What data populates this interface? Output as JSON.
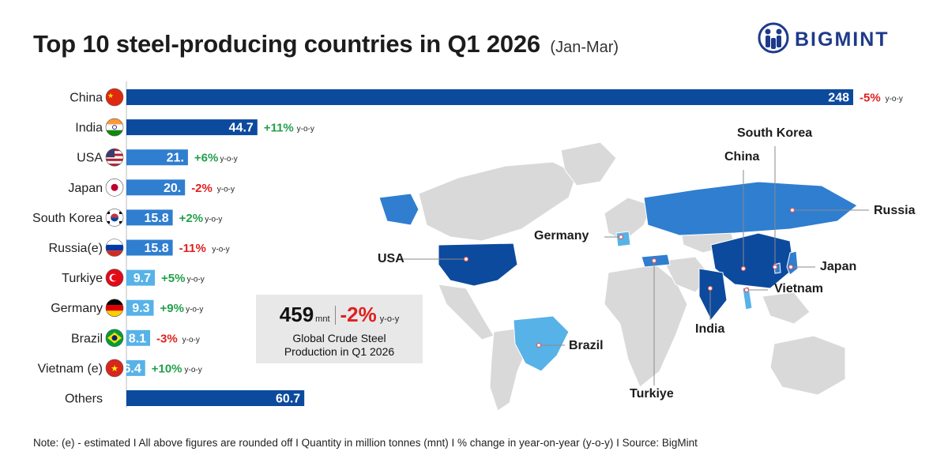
{
  "header": {
    "title": "Top 10 steel-producing countries in Q1 2026",
    "subtitle": "(Jan-Mar)"
  },
  "brand": {
    "name": "BIGMINT",
    "icon": "bigmint-logo-icon",
    "color": "#1e3a8a"
  },
  "colors": {
    "bar_dark": "#0c4a9e",
    "bar_mid": "#2f7ed0",
    "bar_light": "#57b2e8",
    "positive": "#22a04b",
    "negative": "#e02020",
    "land": "#d9d9d9"
  },
  "chart_data": {
    "type": "bar",
    "orientation": "horizontal",
    "categories": [
      "China",
      "India",
      "USA",
      "Japan",
      "South Korea",
      "Russia(e)",
      "Turkiye",
      "Germany",
      "Brazil",
      "Vietnam (e)",
      "Others"
    ],
    "values": [
      248,
      44.7,
      21.0,
      20.0,
      15.8,
      15.8,
      9.7,
      9.3,
      8.1,
      6.4,
      60.7
    ],
    "value_labels": [
      "248",
      "44.7",
      "21.",
      "20.",
      "15.8",
      "15.8",
      "9.7",
      "9.3",
      "8.1",
      "6.4",
      "60.7"
    ],
    "yoy_change": [
      "-5%",
      "+11%",
      "+6%",
      "-2%",
      "+2%",
      "-11%",
      "+5%",
      "+9%",
      "-3%",
      "+10%",
      ""
    ],
    "yoy_suffix": "y-o-y",
    "flags": [
      "china-flag-icon",
      "india-flag-icon",
      "usa-flag-icon",
      "japan-flag-icon",
      "south-korea-flag-icon",
      "russia-flag-icon",
      "turkiye-flag-icon",
      "germany-flag-icon",
      "brazil-flag-icon",
      "vietnam-flag-icon",
      ""
    ],
    "unit": "mnt",
    "grid": false,
    "legend": "none"
  },
  "summary": {
    "value": "459",
    "unit": "mnt",
    "change": "-2%",
    "change_suffix": "y-o-y",
    "label_line1": "Global Crude Steel",
    "label_line2": "Production in Q1 2026"
  },
  "map": {
    "labels": {
      "south_korea": "South Korea",
      "china": "China",
      "russia": "Russia",
      "germany": "Germany",
      "usa": "USA",
      "japan": "Japan",
      "vietnam": "Vietnam",
      "india": "India",
      "brazil": "Brazil",
      "turkiye": "Turkiye"
    }
  },
  "footer": {
    "note": "Note: (e) - estimated  I  All above figures are rounded off   I  Quantity in million tonnes (mnt)  I  % change in year-on-year (y-o-y)  I  Source: BigMint"
  }
}
